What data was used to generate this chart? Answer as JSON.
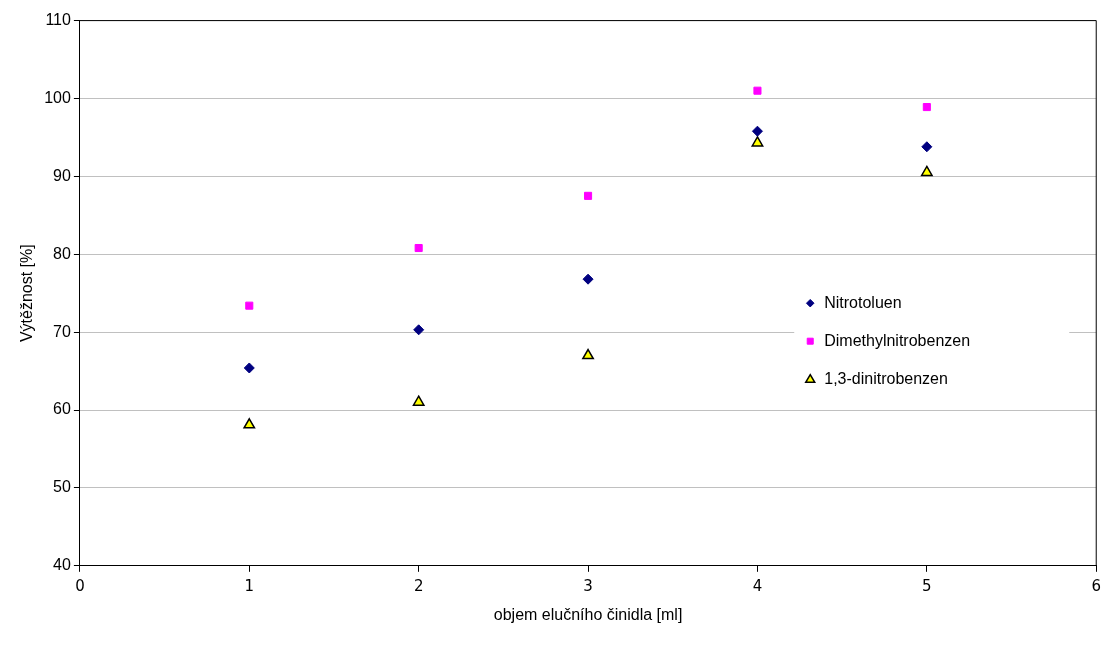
{
  "chart_data": {
    "type": "scatter",
    "xlabel": "objem elučního činidla [ml]",
    "ylabel": "Výtěžnost [%]",
    "x": [
      1,
      2,
      3,
      4,
      5
    ],
    "series": [
      {
        "name": "Nitrotoluen",
        "color": "#000080",
        "marker": "diamond",
        "values": [
          65.4,
          70.3,
          76.8,
          95.8,
          93.8
        ]
      },
      {
        "name": "Dimethylnitrobenzen",
        "color": "#ff00ff",
        "marker": "square",
        "values": [
          73.4,
          80.8,
          87.5,
          101.0,
          98.9
        ]
      },
      {
        "name": "1,3-dinitrobenzen",
        "color": "#ffff00",
        "marker": "triangle",
        "values": [
          58.1,
          61.0,
          67.0,
          94.3,
          90.5
        ]
      }
    ],
    "xlim": [
      0,
      6
    ],
    "xticks": [
      0,
      1,
      2,
      3,
      4,
      5,
      6
    ],
    "ylim": [
      40,
      110
    ],
    "yticks": [
      40,
      50,
      60,
      70,
      80,
      90,
      100,
      110
    ],
    "grid": "y",
    "legend": "right"
  }
}
